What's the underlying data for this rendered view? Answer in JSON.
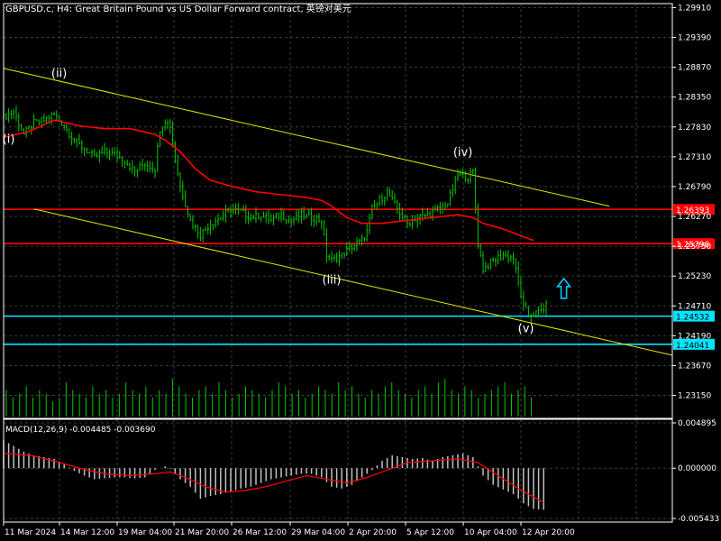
{
  "header": {
    "title": "GBPUSD.c, H4:  Great Britain Pound vs US Dollar Forward contract, 英镑对美元"
  },
  "colors": {
    "background": "#000000",
    "grid": "#3c3c3c",
    "candle": "#00c800",
    "ma": "#ff0000",
    "level_red": "#ff0000",
    "level_cyan": "#00e5ff",
    "channel": "#e6e600",
    "arrow": "#00c8ff",
    "volume": "#00c800",
    "macd_hist": "#c0c0c0",
    "macd_signal": "#ff0000",
    "text": "#ffffff",
    "frame": "#ffffff"
  },
  "wave_labels": [
    "(i)",
    "(ii)",
    "(iii)",
    "(iv)",
    "(v)"
  ],
  "chart_data": [
    {
      "type": "candlestick",
      "symbol": "GBPUSD.c",
      "timeframe": "H4",
      "y_ticks": [
        "1.29910",
        "1.29390",
        "1.28870",
        "1.28350",
        "1.27830",
        "1.27310",
        "1.26790",
        "1.26270",
        "1.25750",
        "1.25230",
        "1.24710",
        "1.24190",
        "1.23670",
        "1.23150"
      ],
      "ylim": [
        1.2275,
        1.2998
      ],
      "x_ticks": [
        "11 Mar 2024",
        "14 Mar 12:00",
        "19 Mar 04:00",
        "21 Mar 20:00",
        "26 Mar 12:00",
        "29 Mar 04:00",
        "2 Apr 20:00",
        "5 Apr 12:00",
        "10 Apr 04:00",
        "12 Apr 20:00"
      ],
      "close_path": [
        [
          0,
          1.28
        ],
        [
          4,
          1.281
        ],
        [
          8,
          1.277
        ],
        [
          12,
          1.279
        ],
        [
          16,
          1.2795
        ],
        [
          20,
          1.2805
        ],
        [
          24,
          1.2785
        ],
        [
          28,
          1.276
        ],
        [
          32,
          1.2745
        ],
        [
          36,
          1.273
        ],
        [
          40,
          1.274
        ],
        [
          44,
          1.2735
        ],
        [
          48,
          1.2725
        ],
        [
          52,
          1.2705
        ],
        [
          56,
          1.272
        ],
        [
          60,
          1.271
        ],
        [
          62,
          1.278
        ],
        [
          64,
          1.2795
        ],
        [
          66,
          1.2785
        ],
        [
          68,
          1.2725
        ],
        [
          70,
          1.268
        ],
        [
          72,
          1.265
        ],
        [
          74,
          1.262
        ],
        [
          78,
          1.2595
        ],
        [
          82,
          1.2615
        ],
        [
          86,
          1.2625
        ],
        [
          90,
          1.264
        ],
        [
          94,
          1.2635
        ],
        [
          98,
          1.2625
        ],
        [
          102,
          1.263
        ],
        [
          106,
          1.262
        ],
        [
          110,
          1.263
        ],
        [
          114,
          1.262
        ],
        [
          118,
          1.263
        ],
        [
          122,
          1.2625
        ],
        [
          126,
          1.262
        ],
        [
          128,
          1.256
        ],
        [
          130,
          1.255
        ],
        [
          134,
          1.256
        ],
        [
          138,
          1.2575
        ],
        [
          142,
          1.2585
        ],
        [
          144,
          1.26
        ],
        [
          146,
          1.264
        ],
        [
          148,
          1.265
        ],
        [
          152,
          1.267
        ],
        [
          156,
          1.264
        ],
        [
          160,
          1.2615
        ],
        [
          164,
          1.2625
        ],
        [
          168,
          1.263
        ],
        [
          172,
          1.264
        ],
        [
          176,
          1.265
        ],
        [
          180,
          1.27
        ],
        [
          184,
          1.2695
        ],
        [
          186,
          1.2705
        ],
        [
          188,
          1.258
        ],
        [
          190,
          1.2535
        ],
        [
          194,
          1.255
        ],
        [
          198,
          1.256
        ],
        [
          202,
          1.2555
        ],
        [
          204,
          1.251
        ],
        [
          206,
          1.247
        ],
        [
          208,
          1.2455
        ],
        [
          212,
          1.246
        ],
        [
          215,
          1.247
        ]
      ],
      "annotations": [
        {
          "label": "(i)",
          "x": 2,
          "y": 1.2755
        },
        {
          "label": "(ii)",
          "x": 22,
          "y": 1.287
        },
        {
          "label": "(iii)",
          "x": 130,
          "y": 1.251
        },
        {
          "label": "(iv)",
          "x": 182,
          "y": 1.2732
        },
        {
          "label": "(v)",
          "x": 207,
          "y": 1.2425
        }
      ],
      "ma": [
        [
          0,
          1.2765
        ],
        [
          10,
          1.2775
        ],
        [
          20,
          1.2795
        ],
        [
          30,
          1.2785
        ],
        [
          40,
          1.278
        ],
        [
          50,
          1.278
        ],
        [
          60,
          1.277
        ],
        [
          64,
          1.276
        ],
        [
          70,
          1.274
        ],
        [
          76,
          1.271
        ],
        [
          82,
          1.269
        ],
        [
          90,
          1.268
        ],
        [
          100,
          1.267
        ],
        [
          110,
          1.2665
        ],
        [
          120,
          1.266
        ],
        [
          126,
          1.2655
        ],
        [
          130,
          1.2645
        ],
        [
          136,
          1.2625
        ],
        [
          142,
          1.2615
        ],
        [
          150,
          1.2615
        ],
        [
          160,
          1.262
        ],
        [
          170,
          1.2625
        ],
        [
          180,
          1.263
        ],
        [
          186,
          1.2625
        ],
        [
          190,
          1.2615
        ],
        [
          198,
          1.2605
        ],
        [
          204,
          1.2595
        ],
        [
          210,
          1.2585
        ]
      ],
      "levels": [
        {
          "price": 1.26393,
          "label": "1.26393",
          "kind": "red"
        },
        {
          "price": 1.25796,
          "label": "1.25796",
          "kind": "red"
        },
        {
          "price": 1.24532,
          "label": "1.24532",
          "kind": "cyan"
        },
        {
          "price": 1.24041,
          "label": "1.24041",
          "kind": "cyan"
        }
      ],
      "channel": [
        {
          "x1": 0,
          "y1": 1.2885,
          "x2": 240,
          "y2": 1.2645
        },
        {
          "x1": 12,
          "y1": 1.264,
          "x2": 265,
          "y2": 1.2385
        }
      ],
      "arrow": {
        "x": 222,
        "y": 1.25,
        "direction": "up"
      }
    },
    {
      "type": "bar",
      "panel": "volume",
      "values": [
        7,
        5,
        6,
        8,
        5,
        7,
        6,
        4,
        5,
        9,
        7,
        6,
        5,
        8,
        6,
        7,
        5,
        6,
        9,
        7,
        6,
        8,
        5,
        7,
        6,
        10,
        8,
        6,
        5,
        7,
        8,
        6,
        9,
        7,
        5,
        6,
        8,
        7,
        6,
        5,
        7,
        9,
        8,
        6,
        7,
        5,
        6,
        8,
        7,
        6,
        9,
        7,
        8,
        6,
        5,
        7,
        6,
        8,
        9,
        7,
        6,
        5,
        7,
        8,
        6,
        9,
        10,
        7,
        6,
        8,
        7,
        5,
        6,
        7,
        8,
        9,
        6,
        7,
        8,
        5
      ]
    },
    {
      "type": "bar",
      "panel": "macd",
      "title": "MACD(12,26,9) -0.004485 -0.003690",
      "y_ticks": [
        "0.004895",
        "0.000000",
        "-0.005433"
      ],
      "ylim": [
        -0.005433,
        0.004895
      ],
      "histogram": [
        [
          0,
          0.003
        ],
        [
          4,
          0.0024
        ],
        [
          8,
          0.0018
        ],
        [
          12,
          0.0014
        ],
        [
          16,
          0.0012
        ],
        [
          20,
          0.001
        ],
        [
          24,
          0.0004
        ],
        [
          28,
          -0.0003
        ],
        [
          32,
          -0.0008
        ],
        [
          36,
          -0.0012
        ],
        [
          40,
          -0.0011
        ],
        [
          44,
          -0.001
        ],
        [
          48,
          -0.001
        ],
        [
          52,
          -0.0011
        ],
        [
          56,
          -0.001
        ],
        [
          60,
          -0.0002
        ],
        [
          64,
          0.0002
        ],
        [
          66,
          -0.0001
        ],
        [
          70,
          -0.0012
        ],
        [
          74,
          -0.002
        ],
        [
          78,
          -0.0033
        ],
        [
          82,
          -0.003
        ],
        [
          86,
          -0.0028
        ],
        [
          90,
          -0.0025
        ],
        [
          94,
          -0.0022
        ],
        [
          98,
          -0.002
        ],
        [
          102,
          -0.0016
        ],
        [
          106,
          -0.0012
        ],
        [
          110,
          -0.001
        ],
        [
          114,
          -0.0008
        ],
        [
          118,
          -0.0006
        ],
        [
          122,
          -0.0006
        ],
        [
          126,
          -0.001
        ],
        [
          130,
          -0.002
        ],
        [
          134,
          -0.0022
        ],
        [
          138,
          -0.0018
        ],
        [
          142,
          -0.001
        ],
        [
          146,
          -0.0002
        ],
        [
          150,
          0.0008
        ],
        [
          154,
          0.0014
        ],
        [
          158,
          0.0012
        ],
        [
          162,
          0.001
        ],
        [
          166,
          0.0011
        ],
        [
          170,
          0.0008
        ],
        [
          174,
          0.0012
        ],
        [
          178,
          0.0014
        ],
        [
          182,
          0.0016
        ],
        [
          186,
          0.0012
        ],
        [
          190,
          -0.0008
        ],
        [
          194,
          -0.0018
        ],
        [
          198,
          -0.0023
        ],
        [
          202,
          -0.0028
        ],
        [
          206,
          -0.0038
        ],
        [
          210,
          -0.0044
        ],
        [
          214,
          -0.0045
        ]
      ],
      "signal": [
        [
          0,
          0.0016
        ],
        [
          10,
          0.0014
        ],
        [
          20,
          0.0008
        ],
        [
          30,
          0.0
        ],
        [
          40,
          -0.0006
        ],
        [
          50,
          -0.0008
        ],
        [
          60,
          -0.0006
        ],
        [
          66,
          -0.0004
        ],
        [
          72,
          -0.001
        ],
        [
          80,
          -0.002
        ],
        [
          88,
          -0.0026
        ],
        [
          96,
          -0.0024
        ],
        [
          104,
          -0.002
        ],
        [
          112,
          -0.0014
        ],
        [
          120,
          -0.0008
        ],
        [
          128,
          -0.0012
        ],
        [
          136,
          -0.0016
        ],
        [
          144,
          -0.001
        ],
        [
          152,
          -0.0002
        ],
        [
          160,
          0.0006
        ],
        [
          170,
          0.0008
        ],
        [
          180,
          0.001
        ],
        [
          188,
          0.0006
        ],
        [
          196,
          -0.0008
        ],
        [
          204,
          -0.0022
        ],
        [
          214,
          -0.0037
        ]
      ]
    }
  ]
}
